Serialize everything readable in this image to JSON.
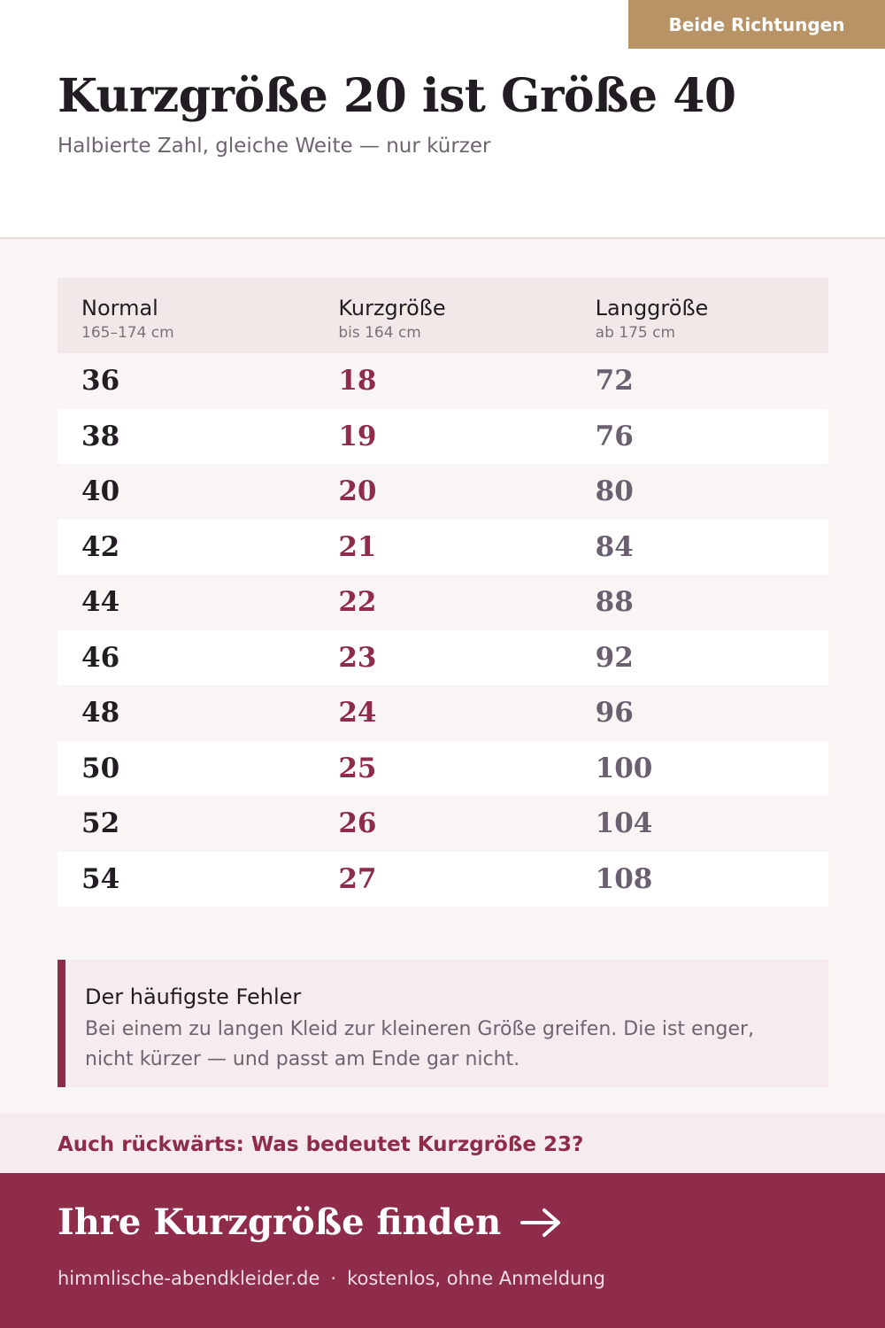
{
  "badge": "Beide Richtungen",
  "header": {
    "title": "Kurzgröße 20 ist Größe 40",
    "subtitle": "Halbierte Zahl, gleiche Weite — nur kürzer"
  },
  "table": {
    "columns": [
      {
        "label": "Normal",
        "sub": "165–174 cm"
      },
      {
        "label": "Kurzgröße",
        "sub": "bis 164 cm"
      },
      {
        "label": "Langgröße",
        "sub": "ab 175 cm"
      }
    ],
    "rows": [
      {
        "normal": "36",
        "kurz": "18",
        "lang": "72"
      },
      {
        "normal": "38",
        "kurz": "19",
        "lang": "76"
      },
      {
        "normal": "40",
        "kurz": "20",
        "lang": "80"
      },
      {
        "normal": "42",
        "kurz": "21",
        "lang": "84"
      },
      {
        "normal": "44",
        "kurz": "22",
        "lang": "88"
      },
      {
        "normal": "46",
        "kurz": "23",
        "lang": "92"
      },
      {
        "normal": "48",
        "kurz": "24",
        "lang": "96"
      },
      {
        "normal": "50",
        "kurz": "25",
        "lang": "100"
      },
      {
        "normal": "52",
        "kurz": "26",
        "lang": "104"
      },
      {
        "normal": "54",
        "kurz": "27",
        "lang": "108"
      }
    ]
  },
  "callout": {
    "title": "Der häufigste Fehler",
    "body": "Bei einem zu langen Kleid zur kleineren Größe greifen. Die ist enger, nicht kürzer — und passt am Ende gar nicht."
  },
  "backlink": "Auch rückwärts: Was bedeutet Kurzgröße 23?",
  "footer": {
    "cta": "Ihre Kurzgröße finden",
    "site": "himmlische-abendkleider.de",
    "separator": "·",
    "note": "kostenlos, ohne Anmeldung"
  },
  "colors": {
    "accent": "#8e2c4a",
    "badge": "#b89366",
    "lang": "#6a6070"
  },
  "icons": {
    "cta_arrow": "arrow-right-icon"
  }
}
